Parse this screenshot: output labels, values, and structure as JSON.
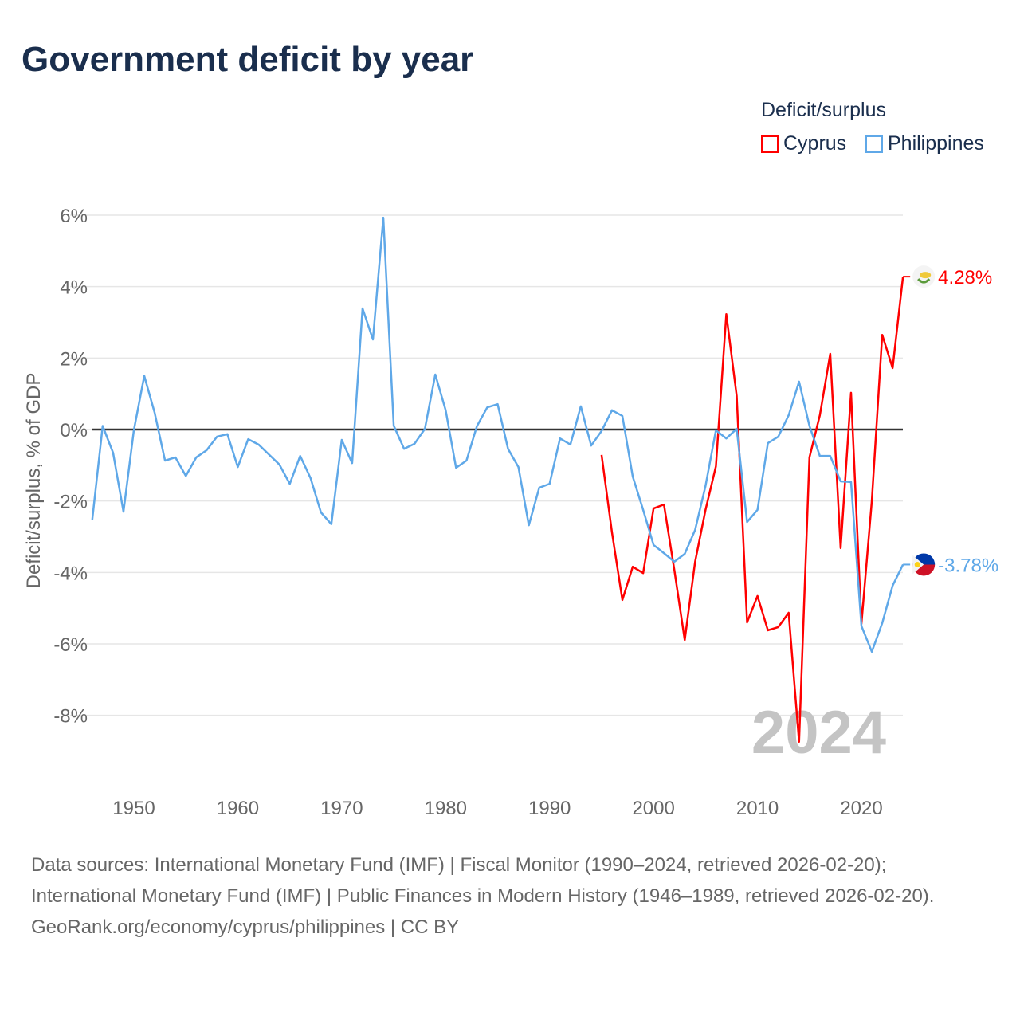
{
  "title": "Government deficit by year",
  "legend": {
    "title": "Deficit/surplus",
    "items": [
      "Cyprus",
      "Philippines"
    ]
  },
  "footer": {
    "sources": "Data sources: International Monetary Fund (IMF) | Fiscal Monitor (1990–2024, retrieved 2026-02-20); International Monetary Fund (IMF) | Public Finances in Modern History (1946–1989, retrieved 2026-02-20).",
    "credit": "GeoRank.org/economy/cyprus/philippines | CC BY"
  },
  "chart_data": {
    "type": "line",
    "title": "Government deficit by year",
    "xlabel": "",
    "ylabel": "Deficit/surplus, % of GDP",
    "xlim": [
      1946,
      2024
    ],
    "ylim": [
      -10,
      6
    ],
    "xticks": [
      1950,
      1960,
      1970,
      1980,
      1990,
      2000,
      2010,
      2020
    ],
    "yticks": [
      6,
      4,
      2,
      0,
      -2,
      -4,
      -6,
      -8
    ],
    "ytick_labels": [
      "6%",
      "4%",
      "2%",
      "0%",
      "-2%",
      "-4%",
      "-6%",
      "-8%"
    ],
    "year_watermark": "2024",
    "legend_position": "top-right",
    "series": [
      {
        "name": "Cyprus",
        "color": "#ff0000",
        "start": 1995,
        "end_label": "4.28%",
        "values": [
          -0.71,
          -2.88,
          -4.77,
          -3.84,
          -4.02,
          -2.21,
          -2.1,
          -3.93,
          -5.89,
          -3.7,
          -2.25,
          -1.03,
          3.23,
          0.94,
          -5.4,
          -4.66,
          -5.62,
          -5.53,
          -5.13,
          -8.74,
          -0.78,
          0.4,
          2.12,
          -3.32,
          1.03,
          -5.44,
          -2.0,
          2.65,
          1.72,
          4.28
        ]
      },
      {
        "name": "Philippines",
        "color": "#5fa8e8",
        "start": 1946,
        "end_label": "-3.78%",
        "values": [
          -2.52,
          0.1,
          -0.65,
          -2.3,
          -0.02,
          1.5,
          0.47,
          -0.87,
          -0.78,
          -1.3,
          -0.78,
          -0.58,
          -0.2,
          -0.13,
          -1.05,
          -0.27,
          -0.42,
          -0.7,
          -0.98,
          -1.52,
          -0.74,
          -1.36,
          -2.32,
          -2.65,
          -0.29,
          -0.94,
          3.39,
          2.52,
          5.93,
          0.11,
          -0.54,
          -0.4,
          0.02,
          1.54,
          0.54,
          -1.07,
          -0.87,
          0.09,
          0.62,
          0.71,
          -0.54,
          -1.05,
          -2.68,
          -1.63,
          -1.52,
          -0.25,
          -0.42,
          0.65,
          -0.45,
          -0.04,
          0.54,
          0.38,
          -1.32,
          -2.25,
          -3.23,
          -3.46,
          -3.7,
          -3.48,
          -2.81,
          -1.58,
          -0.02,
          -0.25,
          0.02,
          -2.59,
          -2.25,
          -0.38,
          -0.2,
          0.4,
          1.34,
          0.1,
          -0.74,
          -0.74,
          -1.45,
          -1.47,
          -5.5,
          -6.22,
          -5.42,
          -4.37,
          -3.78
        ]
      }
    ]
  }
}
